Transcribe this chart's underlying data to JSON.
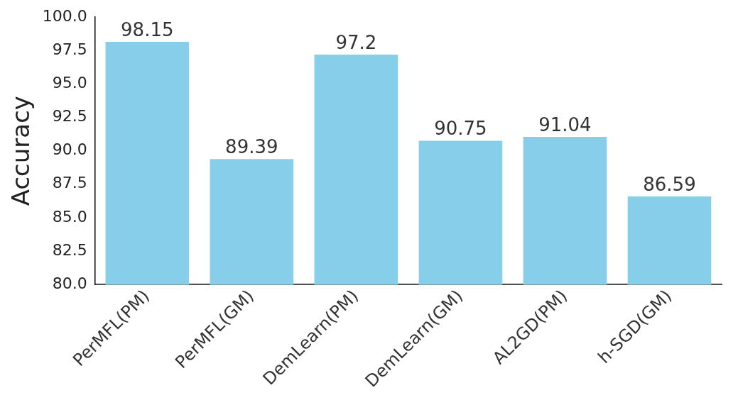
{
  "chart_data": {
    "type": "bar",
    "ylabel": "Accuracy",
    "categories": [
      "PerMFL(PM)",
      "PerMFL(GM)",
      "DemLearn(PM)",
      "DemLearn(GM)",
      "AL2GD(PM)",
      "h-SGD(GM)"
    ],
    "values": [
      98.15,
      89.39,
      97.2,
      90.75,
      91.04,
      86.59
    ],
    "color": "#87ceeb",
    "ylim": [
      80,
      100
    ],
    "yticks": [
      {
        "value": 80,
        "label": "80.0"
      },
      {
        "value": 82.5,
        "label": "82.5"
      },
      {
        "value": 85,
        "label": "85.0"
      },
      {
        "value": 87.5,
        "label": "87.5"
      },
      {
        "value": 90,
        "label": "90.0"
      },
      {
        "value": 92.5,
        "label": "92.5"
      },
      {
        "value": 95,
        "label": "95.0"
      },
      {
        "value": 97.5,
        "label": "97.5"
      },
      {
        "value": 100,
        "label": "100.0"
      }
    ],
    "data_labels": true,
    "grid": false,
    "legend": false
  }
}
